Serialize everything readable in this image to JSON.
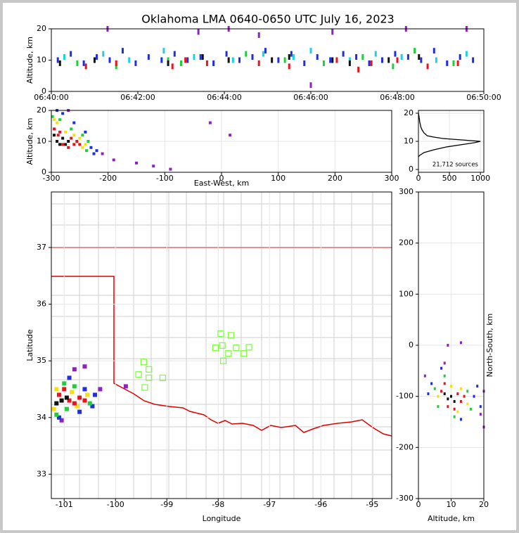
{
  "chart_data": [
    {
      "type": "scatter",
      "title": "Oklahoma LMA 0640-0650 UTC July 16, 2023",
      "ylabel": "Altitude, km",
      "xlim": [
        0,
        10
      ],
      "xticks": [
        {
          "value": 0,
          "label": "06:40:00"
        },
        {
          "value": 2,
          "label": "06:42:00"
        },
        {
          "value": 4,
          "label": "06:44:00"
        },
        {
          "value": 6,
          "label": "06:46:00"
        },
        {
          "value": 8,
          "label": "06:48:00"
        },
        {
          "value": 10,
          "label": "06:50:00"
        }
      ],
      "ylim": [
        0,
        20
      ],
      "yticks": [
        0,
        10,
        20
      ],
      "grid": false,
      "series": [
        {
          "color": "#1f2fe0",
          "x": [
            0.15,
            0.45,
            0.75,
            1.05,
            1.35,
            1.65,
            1.95,
            2.25,
            2.55,
            2.85,
            3.15,
            3.45,
            3.75,
            4.05,
            4.35,
            4.65,
            4.95,
            5.25,
            5.55,
            5.85,
            6.15,
            6.45,
            6.75,
            7.05,
            7.35,
            7.65,
            7.95,
            8.25,
            8.55,
            8.85,
            9.15,
            9.45,
            9.75
          ],
          "y": [
            10,
            12,
            9,
            11,
            10,
            13,
            9,
            11,
            10,
            12,
            10,
            11,
            9,
            12,
            10,
            11,
            13,
            10,
            12,
            9,
            11,
            10,
            12,
            11,
            9,
            10,
            12,
            11,
            10,
            13,
            9,
            11,
            10
          ]
        },
        {
          "color": "#20d0e0",
          "x": [
            0.3,
            1.2,
            1.8,
            2.6,
            3.3,
            4.2,
            4.9,
            5.6,
            6.0,
            6.9,
            7.5,
            8.1,
            8.9,
            9.6
          ],
          "y": [
            11,
            12,
            10,
            13,
            11,
            10,
            12,
            11,
            13,
            10,
            12,
            11,
            10,
            12
          ]
        },
        {
          "color": "#1fcf3a",
          "x": [
            0.6,
            1.5,
            2.7,
            3.0,
            4.5,
            5.4,
            6.3,
            7.2,
            7.9,
            8.4,
            9.3
          ],
          "y": [
            9,
            8,
            10,
            9,
            12,
            10,
            9,
            11,
            8,
            13,
            9
          ]
        },
        {
          "color": "#e8141c",
          "x": [
            0.8,
            1.5,
            2.8,
            3.1,
            3.6,
            4.8,
            5.5,
            6.6,
            7.1,
            7.4,
            8.0,
            8.7,
            9.4
          ],
          "y": [
            8,
            9,
            8,
            10,
            9,
            9,
            8,
            10,
            7,
            9,
            10,
            8,
            9
          ]
        },
        {
          "color": "#111111",
          "x": [
            0.2,
            1.0,
            2.7,
            3.5,
            4.1,
            5.1,
            5.5,
            6.5,
            6.9,
            7.8,
            8.5
          ],
          "y": [
            9,
            10,
            9,
            11,
            10,
            10,
            11,
            10,
            9,
            10,
            11
          ]
        },
        {
          "color": "#9020c0",
          "x": [
            1.3,
            3.4,
            4.1,
            4.8,
            6.0,
            6.5,
            8.2,
            9.6
          ],
          "y": [
            20,
            19,
            20,
            18,
            2,
            19,
            20,
            20
          ]
        }
      ]
    },
    {
      "type": "scatter",
      "xlabel": "East-West, km",
      "ylabel": "Altitude, km",
      "xlim": [
        -300,
        300
      ],
      "xticks": [
        -300,
        -200,
        -100,
        0,
        100,
        200,
        300
      ],
      "ylim": [
        0,
        20
      ],
      "yticks": [
        0,
        10,
        20
      ],
      "grid": true,
      "series": [
        {
          "color": "#9020c0",
          "x": [
            -270,
            -210,
            -190,
            -150,
            -120,
            -90,
            -20,
            15
          ],
          "y": [
            20,
            6,
            4,
            3,
            2,
            1,
            16,
            12
          ]
        },
        {
          "color": "#1f2fe0",
          "x": [
            -280,
            -260,
            -240,
            -230,
            -225,
            -220,
            -290
          ],
          "y": [
            19,
            16,
            13,
            8,
            6,
            7,
            20
          ]
        },
        {
          "color": "#1fcf3a",
          "x": [
            -285,
            -265,
            -245,
            -238,
            -235,
            -298
          ],
          "y": [
            17,
            14,
            12,
            7,
            10,
            18
          ]
        },
        {
          "color": "#f5e10f",
          "x": [
            -290,
            -275,
            -260,
            -250,
            -245,
            -240,
            -295
          ],
          "y": [
            16,
            13,
            12,
            11,
            8,
            9,
            17
          ]
        },
        {
          "color": "#e8141c",
          "x": [
            -295,
            -288,
            -280,
            -270,
            -260,
            -255,
            -250,
            -285,
            -265
          ],
          "y": [
            14,
            12,
            9,
            8,
            9,
            10,
            9,
            13,
            11
          ]
        },
        {
          "color": "#111111",
          "x": [
            -290,
            -285,
            -280,
            -275,
            -270,
            -295
          ],
          "y": [
            10,
            9,
            11,
            9,
            10,
            12
          ]
        }
      ]
    },
    {
      "type": "line",
      "annotation": "21,712 sources",
      "xlim": [
        0,
        1055
      ],
      "xticks": [
        0,
        500,
        1000
      ],
      "ylim": [
        -1,
        21
      ],
      "yticks": [
        0,
        10,
        20
      ],
      "grid": true,
      "color": "#000000",
      "x": [
        0,
        20,
        90,
        250,
        450,
        750,
        900,
        1000,
        700,
        400,
        250,
        140,
        90,
        60,
        40,
        30,
        20,
        15,
        8,
        0
      ],
      "y": [
        4.5,
        5,
        6,
        7,
        8,
        9,
        9.5,
        10,
        10.5,
        11,
        11.5,
        12,
        13,
        14,
        15,
        16,
        17,
        18,
        19,
        20
      ]
    },
    {
      "type": "map",
      "xlabel": "Longitude",
      "ylabel": "Latitude",
      "xlim": [
        -101.25,
        -94.62
      ],
      "xticks": [
        -101,
        -100,
        -99,
        -98,
        -97,
        -96,
        -95
      ],
      "ylim": [
        32.57,
        37.98
      ],
      "yticks": [
        33,
        34,
        35,
        36,
        37
      ],
      "grid": true,
      "series": [
        {
          "color": "#9020c0",
          "x": [
            -100.8,
            -100.6,
            -100.3,
            -99.8,
            -101.05
          ],
          "y": [
            34.85,
            34.9,
            34.5,
            34.55,
            33.95
          ]
        },
        {
          "color": "#1f2fe0",
          "x": [
            -100.9,
            -100.6,
            -100.4,
            -100.45,
            -101.1,
            -100.7
          ],
          "y": [
            34.7,
            34.5,
            34.4,
            34.2,
            34.0,
            34.1
          ]
        },
        {
          "color": "#1fcf3a",
          "x": [
            -101.0,
            -100.8,
            -100.5,
            -101.15,
            -100.95
          ],
          "y": [
            34.6,
            34.55,
            34.25,
            34.05,
            34.15
          ]
        },
        {
          "color": "#f5e10f",
          "x": [
            -101.15,
            -100.85,
            -100.55,
            -100.75,
            -101.2
          ],
          "y": [
            34.5,
            34.45,
            34.4,
            34.2,
            34.15
          ]
        },
        {
          "color": "#e8141c",
          "x": [
            -100.9,
            -100.7,
            -100.6,
            -101.1,
            -100.8,
            -101.0
          ],
          "y": [
            34.3,
            34.35,
            34.3,
            34.4,
            34.25,
            34.5
          ]
        },
        {
          "color": "#111111",
          "x": [
            -101.05,
            -100.95,
            -101.15
          ],
          "y": [
            34.3,
            34.35,
            34.25
          ]
        },
        {
          "color": "#80ff40",
          "marker": "square-open",
          "x": [
            -97.95,
            -97.75,
            -98.05,
            -97.92,
            -97.65,
            -97.8,
            -97.5,
            -97.4,
            -97.9,
            -99.45,
            -99.35,
            -99.55,
            -99.35,
            -99.08,
            -99.43
          ],
          "y": [
            35.48,
            35.45,
            35.23,
            35.27,
            35.23,
            35.13,
            35.13,
            35.24,
            35.0,
            34.98,
            34.85,
            34.76,
            34.7,
            34.7,
            34.53
          ]
        }
      ]
    },
    {
      "type": "scatter",
      "xlabel": "Altitude, km",
      "ylabel": "North-South, km",
      "xlim": [
        0,
        20
      ],
      "xticks": [
        0,
        10,
        20
      ],
      "ylim": [
        -300,
        300
      ],
      "yticks": [
        -300,
        -200,
        -100,
        0,
        100,
        200,
        300
      ],
      "grid": true,
      "series": [
        {
          "color": "#9020c0",
          "x": [
            2,
            8,
            20,
            19,
            9,
            13,
            20
          ],
          "y": [
            -60,
            -35,
            -90,
            -135,
            0,
            5,
            -160
          ]
        },
        {
          "color": "#1f2fe0",
          "x": [
            4,
            7,
            17,
            13,
            18,
            3,
            19
          ],
          "y": [
            -75,
            -45,
            -100,
            -145,
            -80,
            -95,
            -120
          ]
        },
        {
          "color": "#1fcf3a",
          "x": [
            5,
            8,
            15,
            11,
            16,
            6
          ],
          "y": [
            -85,
            -60,
            -90,
            -140,
            -125,
            -120
          ]
        },
        {
          "color": "#f5e10f",
          "x": [
            6,
            10,
            13,
            12,
            15
          ],
          "y": [
            -100,
            -80,
            -85,
            -130,
            -115
          ]
        },
        {
          "color": "#e8141c",
          "x": [
            7,
            12,
            13,
            9,
            11,
            8,
            14
          ],
          "y": [
            -90,
            -95,
            -110,
            -120,
            -125,
            -75,
            -100
          ]
        },
        {
          "color": "#111111",
          "x": [
            9,
            10,
            8,
            11
          ],
          "y": [
            -105,
            -100,
            -95,
            -110
          ]
        }
      ]
    }
  ]
}
